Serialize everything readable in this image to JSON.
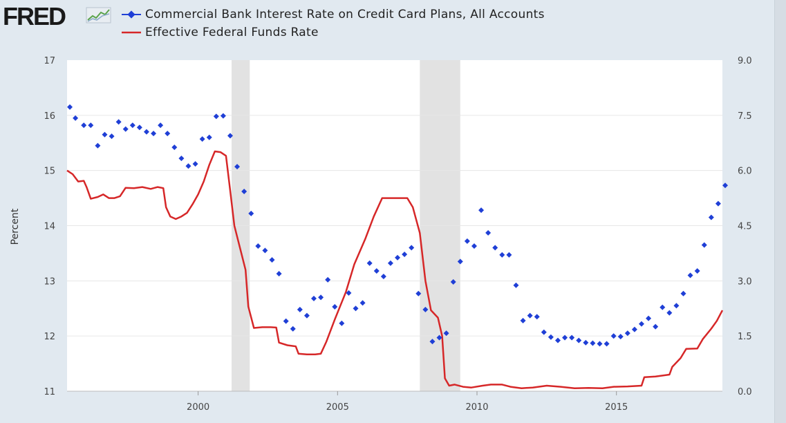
{
  "brand": {
    "logo_text": "FRED",
    "logo_icon": "line-graph-icon"
  },
  "chart_data": {
    "type": "line",
    "xlabel": "",
    "ylabel": "Percent",
    "xlim": [
      1995.3,
      2018.8
    ],
    "ylim_left": [
      11,
      17
    ],
    "ylim_right": [
      0,
      9
    ],
    "x_ticks": [
      2000,
      2005,
      2010,
      2015
    ],
    "y_ticks_left": [
      11,
      12,
      13,
      14,
      15,
      16,
      17
    ],
    "y_ticks_right": [
      "0.0",
      "1.5",
      "3.0",
      "4.5",
      "6.0",
      "7.5",
      "9.0"
    ],
    "grid": true,
    "legend_position": "top-left",
    "recessions": [
      [
        2001.2,
        2001.85
      ],
      [
        2007.95,
        2009.4
      ]
    ],
    "series": [
      {
        "name": "Commercial Bank Interest Rate on Credit Card Plans, All Accounts",
        "axis": "left",
        "style": "markers",
        "color": "#1f3fd6",
        "points": [
          [
            1995.4,
            16.15
          ],
          [
            1995.6,
            15.95
          ],
          [
            1995.9,
            15.82
          ],
          [
            1996.15,
            15.82
          ],
          [
            1996.4,
            15.45
          ],
          [
            1996.65,
            15.65
          ],
          [
            1996.9,
            15.62
          ],
          [
            1997.15,
            15.88
          ],
          [
            1997.4,
            15.75
          ],
          [
            1997.65,
            15.82
          ],
          [
            1997.9,
            15.78
          ],
          [
            1998.15,
            15.7
          ],
          [
            1998.4,
            15.67
          ],
          [
            1998.65,
            15.82
          ],
          [
            1998.9,
            15.67
          ],
          [
            1999.15,
            15.42
          ],
          [
            1999.4,
            15.22
          ],
          [
            1999.65,
            15.08
          ],
          [
            1999.9,
            15.12
          ],
          [
            2000.15,
            15.57
          ],
          [
            2000.4,
            15.6
          ],
          [
            2000.65,
            15.98
          ],
          [
            2000.9,
            15.99
          ],
          [
            2001.15,
            15.63
          ],
          [
            2001.4,
            15.07
          ],
          [
            2001.65,
            14.62
          ],
          [
            2001.9,
            14.22
          ],
          [
            2002.15,
            13.63
          ],
          [
            2002.4,
            13.55
          ],
          [
            2002.65,
            13.38
          ],
          [
            2002.9,
            13.13
          ],
          [
            2003.15,
            12.27
          ],
          [
            2003.4,
            12.13
          ],
          [
            2003.65,
            12.48
          ],
          [
            2003.9,
            12.37
          ],
          [
            2004.15,
            12.68
          ],
          [
            2004.4,
            12.7
          ],
          [
            2004.65,
            13.02
          ],
          [
            2004.9,
            12.53
          ],
          [
            2005.15,
            12.23
          ],
          [
            2005.4,
            12.78
          ],
          [
            2005.65,
            12.5
          ],
          [
            2005.9,
            12.6
          ],
          [
            2006.15,
            13.32
          ],
          [
            2006.4,
            13.18
          ],
          [
            2006.65,
            13.08
          ],
          [
            2006.9,
            13.32
          ],
          [
            2007.15,
            13.42
          ],
          [
            2007.4,
            13.48
          ],
          [
            2007.65,
            13.6
          ],
          [
            2007.9,
            12.77
          ],
          [
            2008.15,
            12.48
          ],
          [
            2008.4,
            11.9
          ],
          [
            2008.65,
            11.97
          ],
          [
            2008.9,
            12.05
          ],
          [
            2009.15,
            12.98
          ],
          [
            2009.4,
            13.35
          ],
          [
            2009.65,
            13.72
          ],
          [
            2009.9,
            13.63
          ],
          [
            2010.15,
            14.28
          ],
          [
            2010.4,
            13.87
          ],
          [
            2010.65,
            13.6
          ],
          [
            2010.9,
            13.47
          ],
          [
            2011.15,
            13.47
          ],
          [
            2011.4,
            12.92
          ],
          [
            2011.65,
            12.28
          ],
          [
            2011.9,
            12.37
          ],
          [
            2012.15,
            12.35
          ],
          [
            2012.4,
            12.07
          ],
          [
            2012.65,
            11.98
          ],
          [
            2012.9,
            11.92
          ],
          [
            2013.15,
            11.97
          ],
          [
            2013.4,
            11.97
          ],
          [
            2013.65,
            11.92
          ],
          [
            2013.9,
            11.88
          ],
          [
            2014.15,
            11.87
          ],
          [
            2014.4,
            11.86
          ],
          [
            2014.65,
            11.86
          ],
          [
            2014.9,
            12.0
          ],
          [
            2015.15,
            11.99
          ],
          [
            2015.4,
            12.05
          ],
          [
            2015.65,
            12.12
          ],
          [
            2015.9,
            12.22
          ],
          [
            2016.15,
            12.32
          ],
          [
            2016.4,
            12.17
          ],
          [
            2016.65,
            12.52
          ],
          [
            2016.9,
            12.42
          ],
          [
            2017.15,
            12.55
          ],
          [
            2017.4,
            12.77
          ],
          [
            2017.65,
            13.1
          ],
          [
            2017.9,
            13.18
          ],
          [
            2018.15,
            13.65
          ],
          [
            2018.4,
            14.15
          ],
          [
            2018.65,
            14.4
          ],
          [
            2018.9,
            14.73
          ]
        ]
      },
      {
        "name": "Effective Federal Funds Rate",
        "axis": "right",
        "style": "line",
        "color": "#d62728",
        "points": [
          [
            1995.3,
            6.0
          ],
          [
            1995.5,
            5.9
          ],
          [
            1995.7,
            5.7
          ],
          [
            1995.9,
            5.72
          ],
          [
            1996.0,
            5.55
          ],
          [
            1996.15,
            5.23
          ],
          [
            1996.4,
            5.28
          ],
          [
            1996.6,
            5.35
          ],
          [
            1996.8,
            5.25
          ],
          [
            1997.0,
            5.25
          ],
          [
            1997.2,
            5.3
          ],
          [
            1997.4,
            5.53
          ],
          [
            1997.7,
            5.52
          ],
          [
            1998.0,
            5.55
          ],
          [
            1998.3,
            5.5
          ],
          [
            1998.55,
            5.55
          ],
          [
            1998.75,
            5.52
          ],
          [
            1998.85,
            5.0
          ],
          [
            1999.0,
            4.75
          ],
          [
            1999.2,
            4.68
          ],
          [
            1999.4,
            4.75
          ],
          [
            1999.6,
            4.85
          ],
          [
            1999.8,
            5.08
          ],
          [
            2000.0,
            5.35
          ],
          [
            2000.2,
            5.7
          ],
          [
            2000.4,
            6.15
          ],
          [
            2000.6,
            6.52
          ],
          [
            2000.8,
            6.5
          ],
          [
            2001.0,
            6.4
          ],
          [
            2001.15,
            5.45
          ],
          [
            2001.3,
            4.5
          ],
          [
            2001.5,
            3.9
          ],
          [
            2001.7,
            3.3
          ],
          [
            2001.8,
            2.3
          ],
          [
            2002.0,
            1.72
          ],
          [
            2002.3,
            1.74
          ],
          [
            2002.6,
            1.74
          ],
          [
            2002.8,
            1.73
          ],
          [
            2002.9,
            1.32
          ],
          [
            2003.2,
            1.25
          ],
          [
            2003.5,
            1.22
          ],
          [
            2003.6,
            1.02
          ],
          [
            2003.9,
            1.0
          ],
          [
            2004.2,
            1.0
          ],
          [
            2004.4,
            1.02
          ],
          [
            2004.6,
            1.35
          ],
          [
            2004.9,
            1.95
          ],
          [
            2005.3,
            2.7
          ],
          [
            2005.6,
            3.45
          ],
          [
            2006.0,
            4.15
          ],
          [
            2006.3,
            4.75
          ],
          [
            2006.6,
            5.25
          ],
          [
            2007.0,
            5.25
          ],
          [
            2007.5,
            5.25
          ],
          [
            2007.7,
            5.0
          ],
          [
            2007.95,
            4.3
          ],
          [
            2008.15,
            3.0
          ],
          [
            2008.35,
            2.2
          ],
          [
            2008.6,
            2.0
          ],
          [
            2008.75,
            1.5
          ],
          [
            2008.85,
            0.35
          ],
          [
            2009.0,
            0.15
          ],
          [
            2009.2,
            0.18
          ],
          [
            2009.5,
            0.12
          ],
          [
            2009.8,
            0.1
          ],
          [
            2010.2,
            0.15
          ],
          [
            2010.5,
            0.18
          ],
          [
            2010.9,
            0.18
          ],
          [
            2011.2,
            0.12
          ],
          [
            2011.6,
            0.08
          ],
          [
            2012.0,
            0.1
          ],
          [
            2012.5,
            0.15
          ],
          [
            2013.0,
            0.12
          ],
          [
            2013.5,
            0.08
          ],
          [
            2014.0,
            0.09
          ],
          [
            2014.5,
            0.08
          ],
          [
            2014.9,
            0.12
          ],
          [
            2015.4,
            0.13
          ],
          [
            2015.9,
            0.15
          ],
          [
            2016.0,
            0.38
          ],
          [
            2016.4,
            0.4
          ],
          [
            2016.9,
            0.45
          ],
          [
            2017.0,
            0.66
          ],
          [
            2017.3,
            0.9
          ],
          [
            2017.5,
            1.15
          ],
          [
            2017.9,
            1.16
          ],
          [
            2018.1,
            1.42
          ],
          [
            2018.4,
            1.7
          ],
          [
            2018.6,
            1.91
          ],
          [
            2018.8,
            2.2
          ]
        ]
      }
    ]
  }
}
